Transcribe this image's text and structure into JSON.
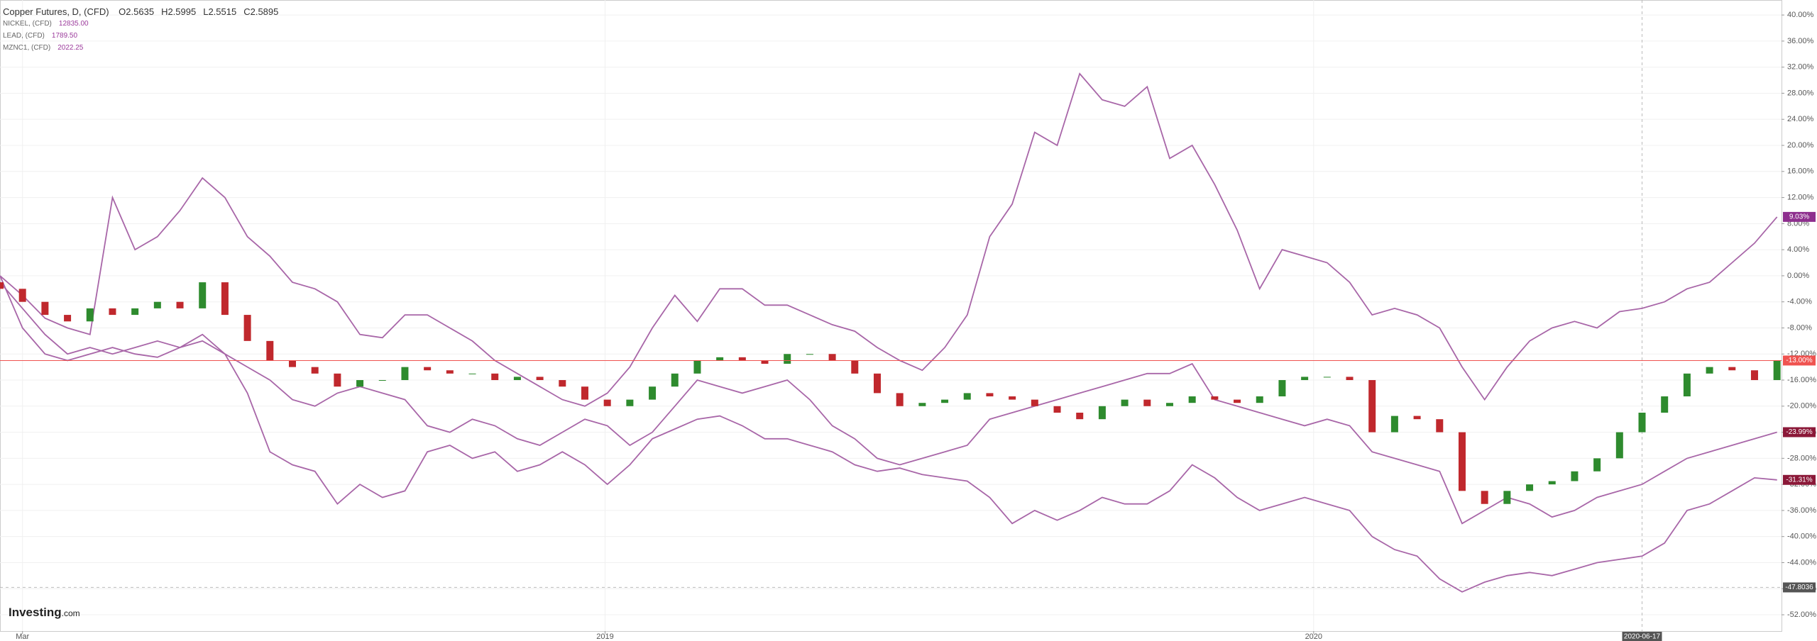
{
  "chart_data": {
    "type": "candlestick",
    "ohlc": [
      {
        "label": "O",
        "value": "2.5635"
      },
      {
        "label": "H",
        "value": "2.5995"
      },
      {
        "label": "L",
        "value": "2.5515"
      },
      {
        "label": "C",
        "value": "2.5895"
      }
    ],
    "logo": {
      "brand": "Investing",
      "suffix": ".com"
    },
    "candles": {
      "name": "Copper Futures, D, (CFD)",
      "up_color": "#2e8b2e",
      "down_color": "#c0282d",
      "open": [
        -1,
        -2,
        -4,
        -6,
        -7,
        -5,
        -6,
        -5,
        -4,
        -5,
        -1,
        -6,
        -10,
        -13,
        -14,
        -15,
        -17,
        -16,
        -16,
        -14,
        -14.5,
        -15,
        -15,
        -16,
        -15.5,
        -16,
        -17,
        -19,
        -20,
        -19,
        -17,
        -15,
        -13,
        -12.5,
        -13,
        -13.5,
        -12,
        -12,
        -13,
        -15,
        -18,
        -20,
        -19.5,
        -19,
        -18,
        -18.5,
        -19,
        -20,
        -21,
        -22,
        -20,
        -19,
        -20,
        -19.5,
        -18.5,
        -19,
        -19.5,
        -18.5,
        -16,
        -15.5,
        -15.5,
        -16,
        -24,
        -21.5,
        -22,
        -24,
        -33,
        -35,
        -33,
        -32,
        -31.5,
        -30,
        -28,
        -24,
        -21,
        -18.5,
        -15,
        -14,
        -14.5,
        -16
      ],
      "close": [
        -2,
        -4,
        -6,
        -7,
        -5,
        -6,
        -5,
        -4,
        -5,
        -1,
        -6,
        -10,
        -13,
        -14,
        -15,
        -17,
        -16,
        -16,
        -14,
        -14.5,
        -15,
        -15,
        -16,
        -15.5,
        -16,
        -17,
        -19,
        -20,
        -19,
        -17,
        -15,
        -13,
        -12.5,
        -13,
        -13.5,
        -12,
        -12,
        -13,
        -15,
        -18,
        -20,
        -19.5,
        -19,
        -18,
        -18.5,
        -19,
        -20,
        -21,
        -22,
        -20,
        -19,
        -20,
        -19.5,
        -18.5,
        -19,
        -19.5,
        -18.5,
        -16,
        -15.5,
        -15.5,
        -16,
        -24,
        -21.5,
        -22,
        -24,
        -33,
        -35,
        -33,
        -32,
        -31.5,
        -30,
        -28,
        -24,
        -21,
        -18.5,
        -15,
        -14,
        -14.5,
        -16,
        -13
      ]
    },
    "price_line": {
      "value": -13,
      "label": "-13.00%",
      "color": "#ef5350"
    },
    "series": [
      {
        "name": "NICKEL, (CFD)",
        "price": "12835.00",
        "color": "#a866a8",
        "badge_color": "#8e2f8e",
        "last_label": "9.03%",
        "values": [
          0,
          -3,
          -6.5,
          -8,
          -9,
          12,
          4,
          6,
          10,
          15,
          12,
          6,
          3,
          -1,
          -2,
          -4,
          -9,
          -9.5,
          -6,
          -6,
          -8,
          -10,
          -13,
          -15,
          -17,
          -19,
          -20,
          -18,
          -14,
          -8,
          -3,
          -7,
          -2,
          -2,
          -4.5,
          -4.5,
          -6,
          -7.5,
          -8.5,
          -11,
          -13,
          -14.5,
          -11,
          -6,
          6,
          11,
          22,
          20,
          31,
          27,
          26,
          29,
          18,
          20,
          14,
          7,
          -2,
          4,
          3,
          2,
          -1,
          -6,
          -5,
          -6,
          -8,
          -14,
          -19,
          -14,
          -10,
          -8,
          -7,
          -8,
          -5.5,
          -5,
          -4,
          -2,
          -1,
          2,
          5,
          9.03
        ]
      },
      {
        "name": "LEAD, (CFD)",
        "price": "1789.50",
        "color": "#a866a8",
        "badge_color": "#8b1838",
        "last_label": "-23.99%",
        "values": [
          -1,
          -5,
          -9,
          -12,
          -11,
          -12,
          -11,
          -10,
          -11,
          -10,
          -12,
          -14,
          -16,
          -19,
          -20,
          -18,
          -17,
          -18,
          -19,
          -23,
          -24,
          -22,
          -23,
          -25,
          -26,
          -24,
          -22,
          -23,
          -26,
          -24,
          -20,
          -16,
          -17,
          -18,
          -17,
          -16,
          -19,
          -23,
          -25,
          -28,
          -29,
          -28,
          -27,
          -26,
          -22,
          -21,
          -20,
          -19,
          -18,
          -17,
          -16,
          -15,
          -15,
          -13.5,
          -19,
          -20,
          -21,
          -22,
          -23,
          -22,
          -23,
          -27,
          -28,
          -29,
          -30,
          -38,
          -36,
          -34,
          -35,
          -37,
          -36,
          -34,
          -33,
          -32,
          -30,
          -28,
          -27,
          -26,
          -25,
          -23.99
        ]
      },
      {
        "name": "MZNC1, (CFD)",
        "price": "2022.25",
        "color": "#a866a8",
        "badge_color": "#8b1838",
        "last_label": "-31.31%",
        "values": [
          0,
          -8,
          -12,
          -13,
          -12,
          -11,
          -12,
          -12.5,
          -11,
          -9,
          -12,
          -18,
          -27,
          -29,
          -30,
          -35,
          -32,
          -34,
          -33,
          -27,
          -26,
          -28,
          -27,
          -30,
          -29,
          -27,
          -29,
          -32,
          -29,
          -25,
          -23.5,
          -22,
          -21.5,
          -23,
          -25,
          -25,
          -26,
          -27,
          -29,
          -30,
          -29.5,
          -30.5,
          -31,
          -31.5,
          -34,
          -38,
          -36,
          -37.5,
          -36,
          -34,
          -35,
          -35,
          -33,
          -29,
          -31,
          -34,
          -36,
          -35,
          -34,
          -35,
          -36,
          -40,
          -42,
          -43,
          -46.5,
          -48.5,
          -47,
          -46,
          -45.5,
          -46,
          -45,
          -44,
          -43.5,
          -43,
          -41,
          -36,
          -35,
          -33,
          -31,
          -31.31
        ]
      }
    ],
    "xlim": [
      0,
      79.2
    ],
    "xticks": [
      {
        "value": 1,
        "label": "Mar"
      },
      {
        "value": 26.9,
        "label": "2019"
      },
      {
        "value": 58.4,
        "label": "2020"
      }
    ],
    "crosshair": {
      "x": 73,
      "x_label": "2020-06-17",
      "y": -47.8036
    },
    "ylim": [
      -54.5,
      42.3
    ],
    "yticks": [
      {
        "value": 40,
        "label": "40.00%"
      },
      {
        "value": 36,
        "label": "36.00%"
      },
      {
        "value": 32,
        "label": "32.00%"
      },
      {
        "value": 28,
        "label": "28.00%"
      },
      {
        "value": 24,
        "label": "24.00%"
      },
      {
        "value": 20,
        "label": "20.00%"
      },
      {
        "value": 16,
        "label": "16.00%"
      },
      {
        "value": 12,
        "label": "12.00%"
      },
      {
        "value": 8,
        "label": "8.00%"
      },
      {
        "value": 4,
        "label": "4.00%"
      },
      {
        "value": 0,
        "label": "0.00%"
      },
      {
        "value": -4,
        "label": "-4.00%"
      },
      {
        "value": -8,
        "label": "-8.00%"
      },
      {
        "value": -12,
        "label": "-12.00%"
      },
      {
        "value": -16,
        "label": "-16.00%"
      },
      {
        "value": -20,
        "label": "-20.00%"
      },
      {
        "value": -24,
        "label": "-24.00%"
      },
      {
        "value": -28,
        "label": "-28.00%"
      },
      {
        "value": -32,
        "label": "-32.00%"
      },
      {
        "value": -36,
        "label": "-36.00%"
      },
      {
        "value": -40,
        "label": "-40.00%"
      },
      {
        "value": -44,
        "label": "-44.00%"
      },
      {
        "value": -48,
        "label": "-48.00%"
      },
      {
        "value": -52,
        "label": "-52.00%"
      }
    ],
    "grid": true
  }
}
